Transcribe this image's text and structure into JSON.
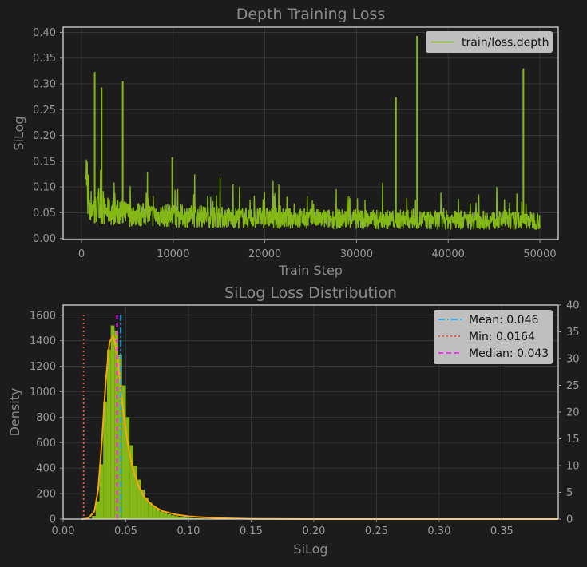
{
  "colors": {
    "background": "#1c1c1c",
    "axes_frame": "#e6e6e6",
    "grid": "#3a3a3a",
    "text_muted": "#8a8a8a",
    "tick_text": "#9a9a9a",
    "loss_line": "#84b816",
    "hist_fill": "#84b816",
    "kde_line": "#f4a614",
    "mean_line": "#1fa8e8",
    "min_line": "#e2553a",
    "median_line": "#ff19ff",
    "legend_bg": "#c8c8c8",
    "legend_text": "#111111"
  },
  "chart_data": [
    {
      "type": "line",
      "title": "Depth Training Loss",
      "xlabel": "Train Step",
      "ylabel": "SiLog",
      "xlim": [
        -2000,
        52000
      ],
      "ylim": [
        -0.002,
        0.41
      ],
      "xticks": [
        0,
        10000,
        20000,
        30000,
        40000,
        50000
      ],
      "yticks": [
        0.0,
        0.05,
        0.1,
        0.15,
        0.2,
        0.25,
        0.3,
        0.35,
        0.4
      ],
      "grid": true,
      "legend": "top-right",
      "series": [
        {
          "name": "train/loss.depth",
          "x": [
            500,
            1000,
            1500,
            2000,
            3000,
            4000,
            5000,
            6000,
            7000,
            8000,
            9000,
            10000,
            12000,
            14000,
            16000,
            18000,
            20000,
            22000,
            24000,
            26000,
            28000,
            30000,
            32000,
            34000,
            36000,
            38000,
            40000,
            42000,
            44000,
            46000,
            48000,
            50000
          ],
          "y": [
            0.085,
            0.065,
            0.058,
            0.055,
            0.052,
            0.05,
            0.048,
            0.047,
            0.046,
            0.045,
            0.045,
            0.044,
            0.043,
            0.042,
            0.041,
            0.04,
            0.04,
            0.039,
            0.039,
            0.038,
            0.038,
            0.038,
            0.037,
            0.037,
            0.037,
            0.036,
            0.036,
            0.036,
            0.036,
            0.035,
            0.035,
            0.035
          ],
          "spikes": [
            {
              "x": 1450,
              "y": 0.323
            },
            {
              "x": 2200,
              "y": 0.293
            },
            {
              "x": 4500,
              "y": 0.305
            },
            {
              "x": 9900,
              "y": 0.158
            },
            {
              "x": 34300,
              "y": 0.274
            },
            {
              "x": 36600,
              "y": 0.393
            },
            {
              "x": 48200,
              "y": 0.33
            }
          ]
        }
      ]
    },
    {
      "type": "bar",
      "title": "SiLog Loss Distribution",
      "xlabel": "SiLog",
      "ylabel": "Density",
      "xlim": [
        0.0,
        0.395
      ],
      "ylim": [
        0,
        1680
      ],
      "y2lim": [
        0,
        40
      ],
      "xticks": [
        0.0,
        0.05,
        0.1,
        0.15,
        0.2,
        0.25,
        0.3,
        0.35
      ],
      "yticks": [
        0,
        200,
        400,
        600,
        800,
        1000,
        1200,
        1400,
        1600
      ],
      "y2ticks": [
        0,
        5,
        10,
        15,
        20,
        25,
        30,
        35,
        40
      ],
      "grid": true,
      "legend": "top-right",
      "histogram": {
        "bin_edges": [
          0.023,
          0.026,
          0.029,
          0.032,
          0.035,
          0.038,
          0.041,
          0.044,
          0.047,
          0.05,
          0.053,
          0.056,
          0.059,
          0.062,
          0.065,
          0.068,
          0.071,
          0.074,
          0.077,
          0.08,
          0.083,
          0.086,
          0.089,
          0.092,
          0.095,
          0.098,
          0.101,
          0.104,
          0.107,
          0.11,
          0.113,
          0.116,
          0.119,
          0.122,
          0.125,
          0.128
        ],
        "density": [
          25,
          140,
          430,
          920,
          1330,
          1520,
          1480,
          1290,
          1050,
          800,
          580,
          420,
          310,
          230,
          170,
          130,
          100,
          80,
          60,
          48,
          38,
          30,
          24,
          18,
          14,
          11,
          9,
          7,
          6,
          5,
          4,
          3,
          3,
          2,
          2
        ]
      },
      "kde": {
        "x": [
          0.015,
          0.02,
          0.025,
          0.028,
          0.031,
          0.034,
          0.037,
          0.04,
          0.043,
          0.046,
          0.049,
          0.052,
          0.055,
          0.06,
          0.065,
          0.07,
          0.075,
          0.08,
          0.09,
          0.1,
          0.11,
          0.12,
          0.13,
          0.15,
          0.2,
          0.3,
          0.395
        ],
        "y": [
          0,
          5,
          60,
          230,
          620,
          1080,
          1390,
          1440,
          1300,
          1020,
          760,
          560,
          420,
          260,
          170,
          120,
          85,
          60,
          35,
          22,
          15,
          10,
          6,
          2,
          0,
          0,
          0
        ]
      },
      "lines": [
        {
          "name": "Mean: 0.046",
          "x": 0.046
        },
        {
          "name": "Min: 0.0164",
          "x": 0.0164
        },
        {
          "name": "Median: 0.043",
          "x": 0.043
        }
      ]
    }
  ]
}
